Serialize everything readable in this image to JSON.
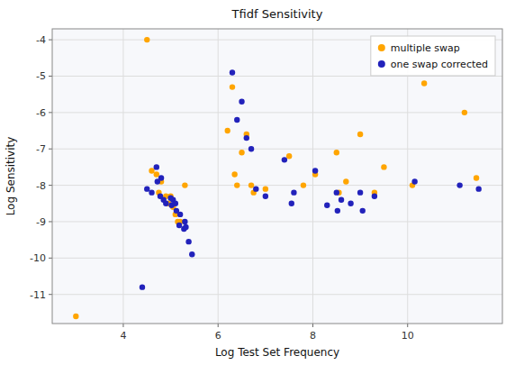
{
  "chart_data": {
    "type": "scatter",
    "title": "Tfidf Sensitivity",
    "xlabel": "Log Test Set Frequency",
    "ylabel": "Log Sensitivity",
    "series": [
      {
        "name": "multiple swap",
        "color": "#FFA500",
        "x": [
          3.0,
          4.5,
          4.6,
          4.7,
          4.75,
          4.8,
          4.9,
          4.95,
          5.0,
          5.05,
          5.1,
          5.15,
          5.2,
          5.3,
          6.2,
          6.3,
          6.35,
          6.4,
          6.5,
          6.6,
          6.7,
          6.75,
          7.0,
          7.5,
          7.8,
          8.05,
          8.5,
          8.55,
          8.7,
          9.0,
          9.3,
          9.5,
          10.1,
          10.35,
          11.2,
          11.45
        ],
        "values": [
          -11.6,
          -4.0,
          -7.6,
          -7.7,
          -8.2,
          -7.9,
          -8.3,
          -8.5,
          -8.3,
          -8.6,
          -8.8,
          -9.0,
          -9.0,
          -8.0,
          -6.5,
          -5.3,
          -7.7,
          -8.0,
          -7.1,
          -6.6,
          -8.0,
          -8.2,
          -8.1,
          -7.2,
          -8.0,
          -7.7,
          -7.1,
          -8.2,
          -7.9,
          -6.6,
          -8.2,
          -7.5,
          -8.0,
          -5.2,
          -6.0,
          -7.8
        ]
      },
      {
        "name": "one swap corrected",
        "color": "#2222BB",
        "x": [
          4.4,
          4.5,
          4.6,
          4.7,
          4.72,
          4.78,
          4.8,
          4.85,
          4.9,
          5.0,
          5.02,
          5.05,
          5.1,
          5.12,
          5.18,
          5.2,
          5.28,
          5.3,
          5.32,
          5.38,
          5.45,
          6.3,
          6.4,
          6.5,
          6.6,
          6.7,
          6.8,
          7.0,
          7.4,
          7.55,
          7.6,
          8.05,
          8.3,
          8.5,
          8.52,
          8.6,
          8.8,
          9.0,
          9.05,
          9.3,
          10.15,
          11.1,
          11.5
        ],
        "values": [
          -10.8,
          -8.1,
          -8.2,
          -7.5,
          -7.9,
          -8.3,
          -7.8,
          -8.4,
          -8.5,
          -8.35,
          -8.55,
          -8.4,
          -8.5,
          -8.7,
          -9.1,
          -8.8,
          -9.2,
          -9.0,
          -9.15,
          -9.55,
          -9.9,
          -4.9,
          -6.2,
          -5.7,
          -6.7,
          -7.0,
          -8.1,
          -8.3,
          -7.3,
          -8.5,
          -8.2,
          -7.6,
          -8.55,
          -8.2,
          -8.7,
          -8.4,
          -8.5,
          -8.2,
          -8.7,
          -8.3,
          -7.9,
          -8.0,
          -8.1
        ]
      }
    ],
    "xlim": [
      2.5,
      12.0
    ],
    "ylim": [
      -11.8,
      -3.7
    ],
    "xticks": [
      4,
      6,
      8,
      10
    ],
    "yticks": [
      -4,
      -5,
      -6,
      -7,
      -8,
      -9,
      -10,
      -11
    ],
    "grid": true,
    "legend": "upper right"
  }
}
